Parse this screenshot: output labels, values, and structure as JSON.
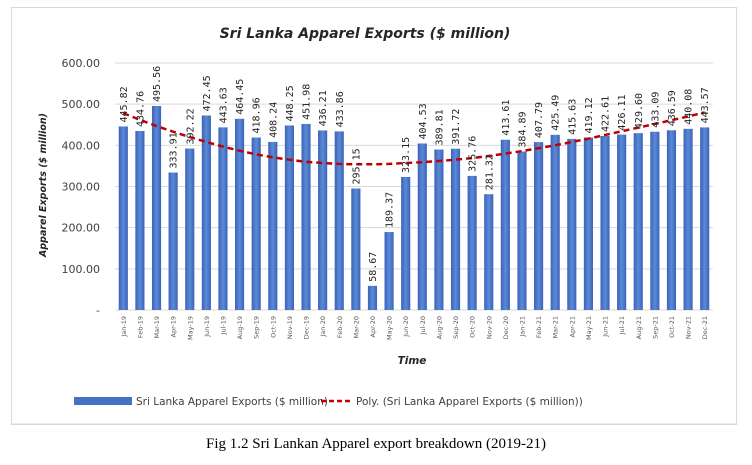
{
  "chart_data": {
    "type": "bar",
    "title": "Sri Lanka Apparel Exports ($ million)",
    "xlabel": "Time",
    "ylabel": "Apparel Exports ($ million)",
    "ylim": [
      0,
      600
    ],
    "yticks": [
      0,
      100,
      200,
      300,
      400,
      500,
      600
    ],
    "ytick_labels": [
      "-",
      "100.00",
      "200.00",
      "300.00",
      "400.00",
      "500.00",
      "600.00"
    ],
    "grid": true,
    "legend_position": "bottom",
    "categories": [
      "Jan-19",
      "Feb-19",
      "Mar-19",
      "Apr-19",
      "May-19",
      "Jun-19",
      "Jul-19",
      "Aug-19",
      "Sep-19",
      "Oct-19",
      "Nov-19",
      "Dec-19",
      "Jan-20",
      "Feb-20",
      "Mar-20",
      "Apr-20",
      "May-20",
      "Jun-20",
      "Jul-20",
      "Aug-20",
      "Sep-20",
      "Oct-20",
      "Nov-20",
      "Dec-20",
      "Jan-21",
      "Feb-21",
      "Mar-21",
      "Apr-21",
      "May-21",
      "Jun-21",
      "Jul-21",
      "Aug-21",
      "Sep-21",
      "Oct-21",
      "Nov-21",
      "Dec-21"
    ],
    "series": [
      {
        "name": "Sri Lanka Apparel Exports ($ million)",
        "kind": "bar",
        "color": "#4472c4",
        "values": [
          445.82,
          434.76,
          495.56,
          333.91,
          392.22,
          472.45,
          443.63,
          464.45,
          418.96,
          408.24,
          448.25,
          451.98,
          436.21,
          433.86,
          295.15,
          58.67,
          189.37,
          323.15,
          404.53,
          389.81,
          391.72,
          325.76,
          281.32,
          413.61,
          384.89,
          407.79,
          425.49,
          415.63,
          419.12,
          422.61,
          426.11,
          429.6,
          433.09,
          436.59,
          440.08,
          443.57
        ],
        "data_labels": [
          "445.82",
          "434.76",
          "495.56",
          "333.91",
          "392.22",
          "472.45",
          "443.63",
          "464.45",
          "418.96",
          "408.24",
          "448.25",
          "451.98",
          "436.21",
          "433.86",
          "295.15",
          "58.67",
          "189.37",
          "323.15",
          "404.53",
          "389.81",
          "391.72",
          "325.76",
          "281.32",
          "413.61",
          "384.89",
          "407.79",
          "425.49",
          "415.63",
          "419.12",
          "422.61",
          "426.11",
          "429.60",
          "433.09",
          "436.59",
          "440.08",
          "443.57"
        ]
      },
      {
        "name": "Poly. (Sri Lanka Apparel Exports ($ million))",
        "kind": "trendline-polynomial",
        "color": "#c00000",
        "values": [
          478,
          462,
          447,
          433,
          420,
          408,
          397,
          387,
          378,
          371,
          365,
          360,
          357,
          355,
          354,
          354,
          355,
          357,
          359,
          362,
          365,
          369,
          374,
          380,
          386,
          393,
          400,
          408,
          416,
          425,
          434,
          443,
          452,
          461,
          470,
          480
        ]
      }
    ]
  },
  "caption": "Fig 1.2 Sri Lankan Apparel export breakdown (2019-21)"
}
